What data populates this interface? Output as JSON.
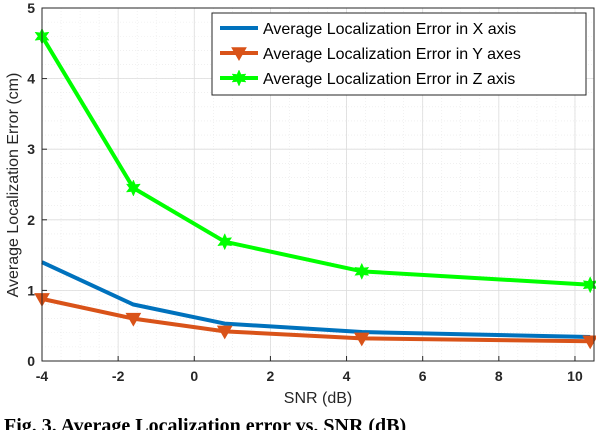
{
  "chart_data": {
    "type": "line",
    "xlabel": "SNR (dB)",
    "ylabel": "Average Localization Error (cm)",
    "xlim": [
      -4,
      10.5
    ],
    "ylim": [
      0,
      5
    ],
    "xticks": [
      "-4",
      "-2",
      "0",
      "2",
      "4",
      "6",
      "8",
      "10"
    ],
    "xtick_values": [
      -4,
      -2,
      0,
      2,
      4,
      6,
      8,
      10
    ],
    "yticks": [
      "0",
      "1",
      "2",
      "3",
      "4",
      "5"
    ],
    "ytick_values": [
      0,
      1,
      2,
      3,
      4,
      5
    ],
    "grid": true,
    "legend_position": "top-right",
    "series": [
      {
        "name": "Average Localization Error in X axis",
        "color": "#0072BD",
        "marker": "none",
        "x": [
          -4,
          -1.6,
          0.8,
          4.4,
          10.4
        ],
        "y": [
          1.4,
          0.8,
          0.53,
          0.41,
          0.34
        ]
      },
      {
        "name": "Average Localization Error in Y axes",
        "color": "#D95319",
        "marker": "triangle-down",
        "x": [
          -4,
          -1.6,
          0.8,
          4.4,
          10.4
        ],
        "y": [
          0.88,
          0.6,
          0.42,
          0.32,
          0.28
        ]
      },
      {
        "name": "Average Localization Error in Z axis",
        "color": "#00FF00",
        "marker": "hexagram",
        "x": [
          -4,
          -1.6,
          0.8,
          4.4,
          10.4
        ],
        "y": [
          4.6,
          2.45,
          1.69,
          1.27,
          1.08
        ]
      }
    ]
  },
  "caption": "Fig. 3.  Average Localization error vs. SNR (dB)"
}
